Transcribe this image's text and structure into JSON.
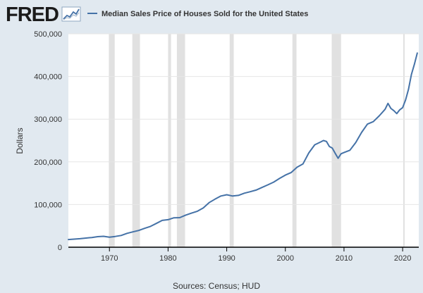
{
  "header": {
    "logo_text": "FRED",
    "logo_icon": "line-chart-icon",
    "legend_label": "Median Sales Price of Houses Sold for the United States"
  },
  "colors": {
    "background": "#e1e9f0",
    "plot_background": "#ffffff",
    "series": "#4572a7",
    "recession": "#e1e1e1",
    "grid": "#e6e6e6",
    "text": "#333333",
    "logo": "#1b1b1b"
  },
  "footer": {
    "sources": "Sources: Census; HUD"
  },
  "chart_data": {
    "type": "line",
    "title": "Median Sales Price of Houses Sold for the United States",
    "xlabel": "",
    "ylabel": "Dollars",
    "xlim": [
      1963,
      2022.75
    ],
    "ylim": [
      0,
      500000
    ],
    "grid": true,
    "legend_position": "top",
    "y_ticks": [
      0,
      100000,
      200000,
      300000,
      400000,
      500000
    ],
    "y_tick_labels": [
      "0",
      "100,000",
      "200,000",
      "300,000",
      "400,000",
      "500,000"
    ],
    "x_ticks": [
      1970,
      1980,
      1990,
      2000,
      2010,
      2020
    ],
    "x_tick_labels": [
      "1970",
      "1980",
      "1990",
      "2000",
      "2010",
      "2020"
    ],
    "recessions": [
      [
        1969.9,
        1970.9
      ],
      [
        1973.9,
        1975.2
      ],
      [
        1980.0,
        1980.5
      ],
      [
        1981.5,
        1982.9
      ],
      [
        1990.5,
        1991.2
      ],
      [
        2001.2,
        2001.9
      ],
      [
        2007.9,
        2009.5
      ],
      [
        2020.1,
        2020.3
      ]
    ],
    "series": [
      {
        "name": "Median Sales Price of Houses Sold for the United States",
        "x": [
          1963,
          1964,
          1965,
          1966,
          1967,
          1968,
          1969,
          1970,
          1971,
          1972,
          1973,
          1974,
          1975,
          1976,
          1977,
          1978,
          1979,
          1980,
          1981,
          1982,
          1983,
          1984,
          1985,
          1986,
          1987,
          1988,
          1989,
          1990,
          1991,
          1992,
          1993,
          1994,
          1995,
          1996,
          1997,
          1998,
          1999,
          2000,
          2001,
          2002,
          2003,
          2004,
          2005,
          2006,
          2006.5,
          2007,
          2007.5,
          2008,
          2008.5,
          2009,
          2009.5,
          2010,
          2011,
          2012,
          2013,
          2014,
          2015,
          2016,
          2017,
          2017.5,
          2018,
          2018.5,
          2019,
          2019.5,
          2020,
          2020.5,
          2021,
          2021.5,
          2022,
          2022.5
        ],
        "values": [
          18000,
          19000,
          20000,
          21500,
          22800,
          24700,
          25600,
          23400,
          25200,
          27600,
          32500,
          35900,
          39300,
          44200,
          48800,
          55700,
          62900,
          64600,
          68900,
          69300,
          75300,
          79900,
          84300,
          92000,
          104500,
          112500,
          120000,
          122900,
          120000,
          121500,
          126500,
          130000,
          133900,
          140000,
          146000,
          152500,
          161000,
          169000,
          175000,
          187500,
          195000,
          221000,
          240000,
          246500,
          250000,
          247900,
          236000,
          232100,
          220000,
          208400,
          219000,
          221800,
          227200,
          245200,
          268900,
          288500,
          294200,
          307800,
          323100,
          337000,
          325000,
          320000,
          313000,
          322000,
          327000,
          345000,
          369800,
          405000,
          428700,
          454900
        ]
      }
    ]
  }
}
